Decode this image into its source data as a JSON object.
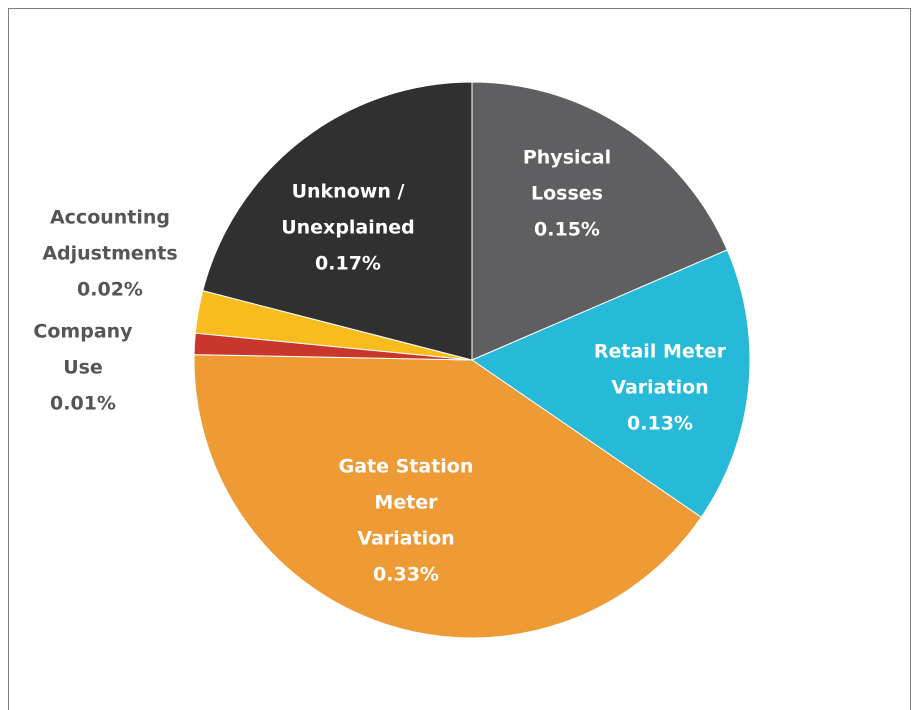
{
  "chart_data": {
    "type": "pie",
    "categories": [
      [
        "Physical",
        "Losses"
      ],
      [
        "Retail Meter",
        "Variation"
      ],
      [
        "Gate Station",
        "Meter",
        "Variation"
      ],
      [
        "Company",
        "Use"
      ],
      [
        "Accounting",
        "Adjustments"
      ],
      [
        "Unknown /",
        "Unexplained"
      ]
    ],
    "values": [
      0.15,
      0.13,
      0.33,
      0.01,
      0.02,
      0.17
    ],
    "value_labels": [
      "0.15%",
      "0.13%",
      "0.33%",
      "0.01%",
      "0.02%",
      "0.17%"
    ],
    "colors": [
      "#5f5f61",
      "#26b9d8",
      "#ee9a35",
      "#c9372c",
      "#f8bd1c",
      "#303030"
    ]
  }
}
